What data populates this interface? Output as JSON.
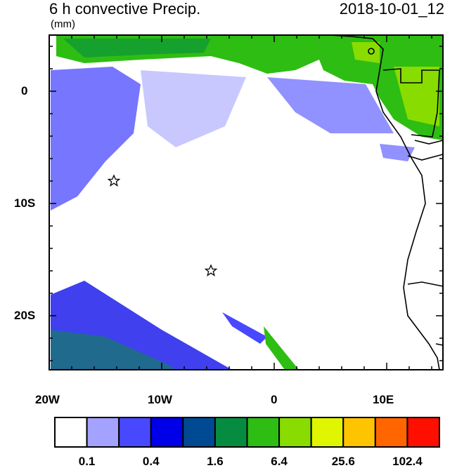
{
  "title": "6 h convective Precip.",
  "date": "2018-10-01_12",
  "units": "(mm)",
  "y_ticks": [
    "0",
    "10S",
    "20S"
  ],
  "x_ticks": [
    "20W",
    "10W",
    "0",
    "10E"
  ],
  "colorbar": {
    "colors": [
      "#ffffff",
      "#a3a3ff",
      "#4848ff",
      "#0000e8",
      "#004a94",
      "#068c40",
      "#2ebd12",
      "#88dc00",
      "#e0f500",
      "#ffc400",
      "#ff6600",
      "#ff0f00"
    ],
    "labels": [
      "0.1",
      "0.4",
      "1.6",
      "6.4",
      "25.6",
      "102.4"
    ]
  },
  "map": {
    "lon_range": [
      -20,
      15
    ],
    "lat_range": [
      -25,
      5
    ],
    "markers": [
      {
        "name": "star",
        "lon": -14.4,
        "lat": -8
      },
      {
        "name": "star",
        "lon": -5.7,
        "lat": -16
      }
    ]
  }
}
